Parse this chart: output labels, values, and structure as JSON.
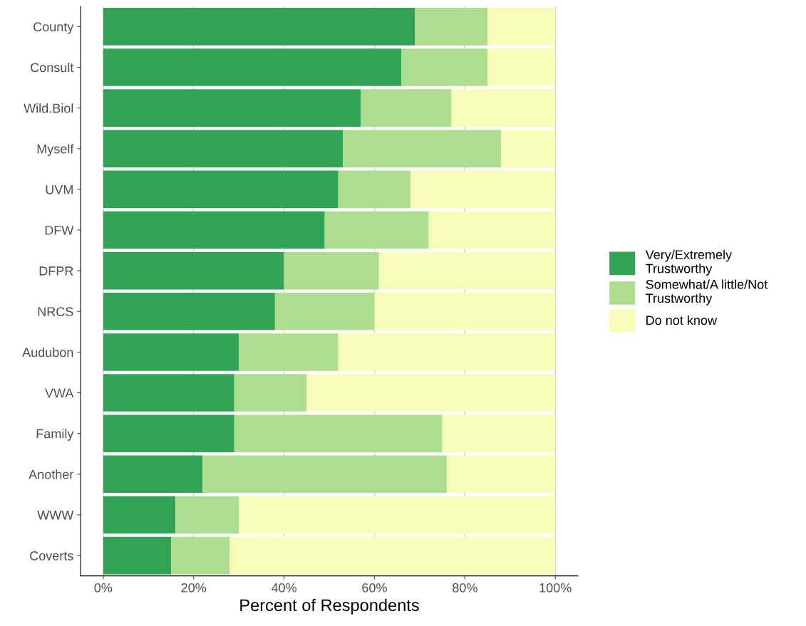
{
  "chart_data": {
    "type": "bar",
    "orientation": "horizontal",
    "stacked": true,
    "xlabel": "Percent of Respondents",
    "categories": [
      "County",
      "Consult",
      "Wild.Biol",
      "Myself",
      "UVM",
      "DFW",
      "DFPR",
      "NRCS",
      "Audubon",
      "VWA",
      "Family",
      "Another",
      "WWW",
      "Coverts"
    ],
    "series": [
      {
        "name": "Very/Extremely\nTrustworthy",
        "color": "#31a354",
        "values": [
          69,
          66,
          57,
          53,
          52,
          49,
          40,
          38,
          30,
          29,
          29,
          22,
          16,
          15
        ]
      },
      {
        "name": "Somewhat/A little/Not\nTrustworthy",
        "color": "#addd8e",
        "values": [
          16,
          19,
          20,
          35,
          16,
          23,
          21,
          22,
          22,
          16,
          46,
          54,
          14,
          13
        ]
      },
      {
        "name": "Do not know",
        "color": "#f7fcb9",
        "values": [
          15,
          15,
          23,
          12,
          32,
          28,
          39,
          40,
          48,
          55,
          25,
          24,
          70,
          72
        ]
      }
    ],
    "xlim": [
      -5,
      105
    ],
    "xticks": [
      {
        "value": 0,
        "label": "0%"
      },
      {
        "value": 20,
        "label": "20%"
      },
      {
        "value": 40,
        "label": "40%"
      },
      {
        "value": 60,
        "label": "60%"
      },
      {
        "value": 80,
        "label": "80%"
      },
      {
        "value": 100,
        "label": "100%"
      }
    ],
    "grid": "x",
    "legend": "right"
  }
}
